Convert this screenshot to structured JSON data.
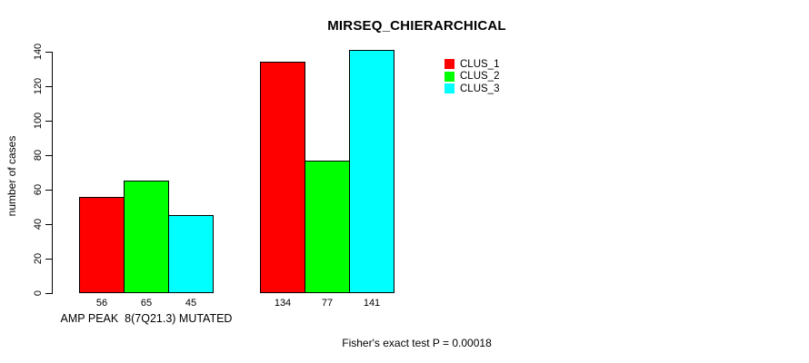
{
  "chart_data": {
    "type": "bar",
    "title": "MIRSEQ_CHIERARCHICAL",
    "xlabel": "",
    "ylabel": "number of cases",
    "ylim": [
      0,
      140
    ],
    "yticks": [
      0,
      20,
      40,
      60,
      80,
      100,
      120,
      140
    ],
    "grid": false,
    "legend_position": "top-right",
    "bar_border_color": "#000000",
    "background_color": "#ffffff",
    "categories": [
      "AMP PEAK  8(7Q21.3) MUTATED",
      ""
    ],
    "series": [
      {
        "name": "CLUS_1",
        "color": "#ff0000",
        "values": [
          56,
          134
        ]
      },
      {
        "name": "CLUS_2",
        "color": "#00ff00",
        "values": [
          65,
          77
        ]
      },
      {
        "name": "CLUS_3",
        "color": "#00ffff",
        "values": [
          45,
          141
        ]
      }
    ]
  },
  "footer": {
    "text": "Fisher's exact test P = 0.00018"
  }
}
